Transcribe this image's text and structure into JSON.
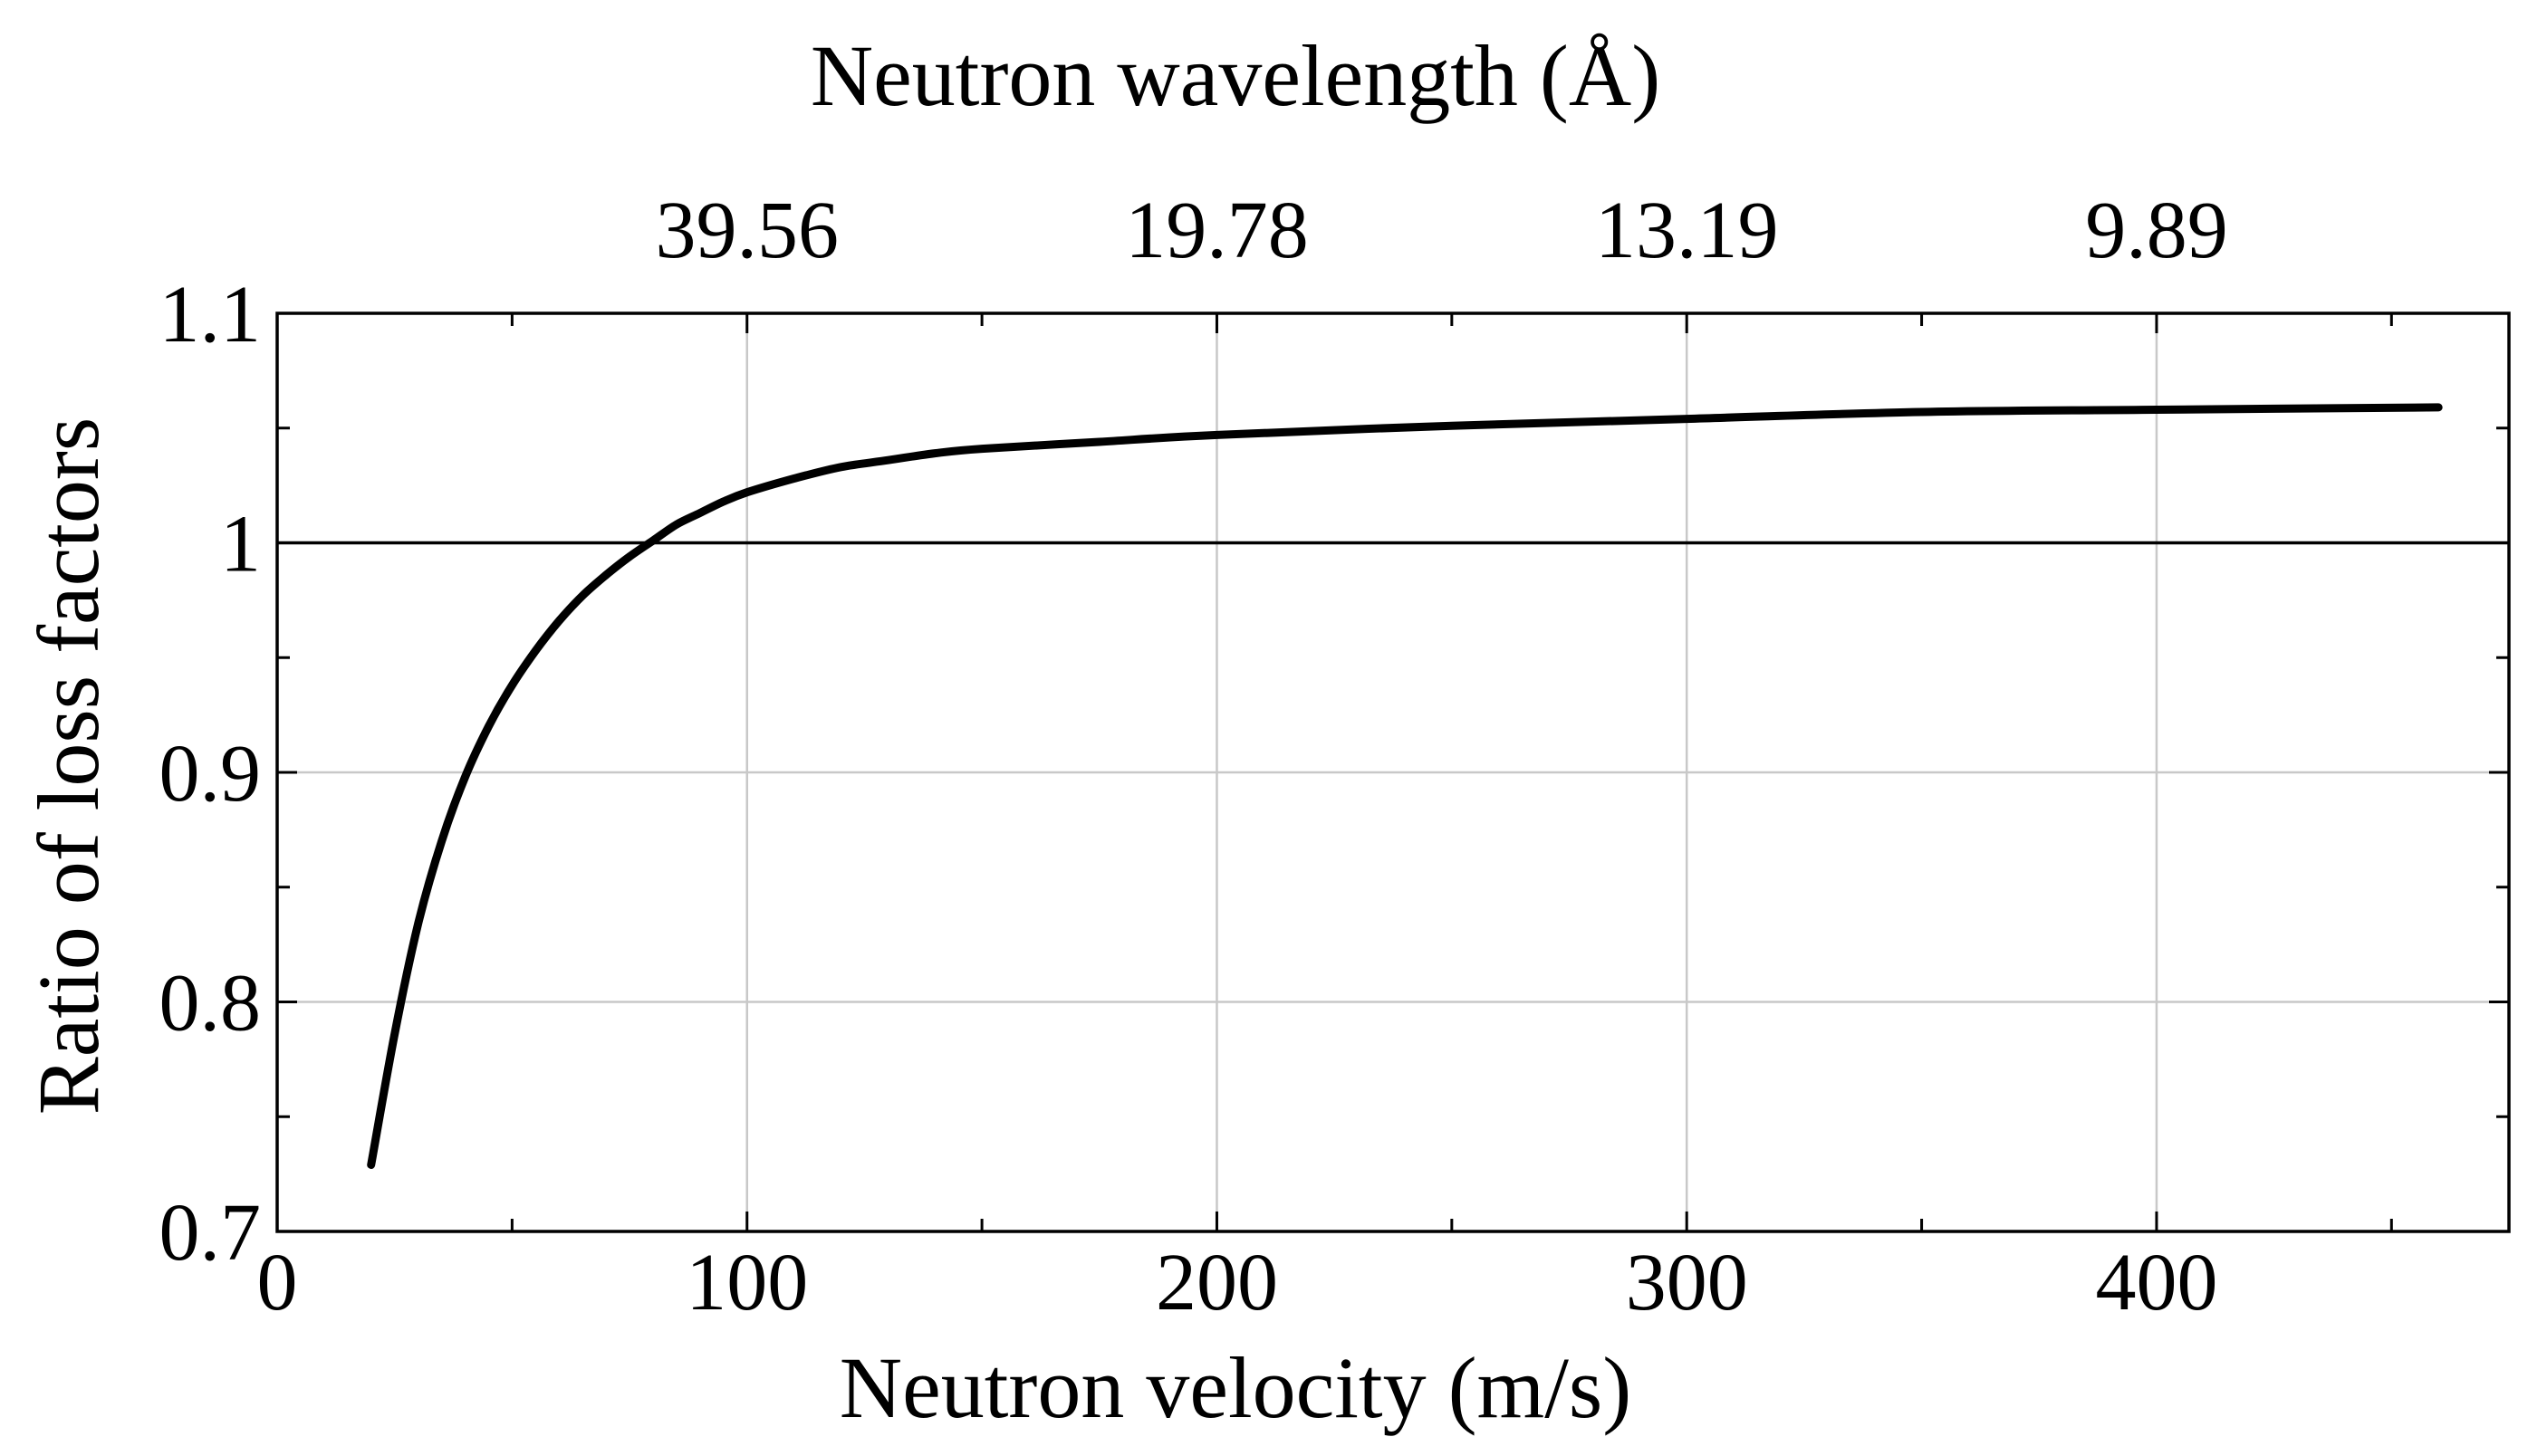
{
  "chart_data": {
    "type": "line",
    "xlabel": "Neutron velocity (m/s)",
    "ylabel": "Ratio of loss factors",
    "x2label": "Neutron wavelength (Å)",
    "xlim": [
      0,
      475
    ],
    "ylim": [
      0.7,
      1.1
    ],
    "x_ticks": [
      0,
      100,
      200,
      300,
      400
    ],
    "x_tick_labels": [
      "0",
      "100",
      "200",
      "300",
      "400"
    ],
    "x_minor_ticks": [
      50,
      150,
      250,
      350,
      450
    ],
    "y_ticks": [
      0.7,
      0.8,
      0.9,
      1.0,
      1.1
    ],
    "y_tick_labels": [
      "0.7",
      "0.8",
      "0.9",
      "1",
      "1.1"
    ],
    "y_minor_ticks": [
      0.75,
      0.85,
      0.95,
      1.05
    ],
    "top_axis": {
      "tick_positions_velocity": [
        100,
        200,
        300,
        400
      ],
      "tick_labels": [
        "39.56",
        "19.78",
        "13.19",
        "9.89"
      ]
    },
    "reference_line": {
      "y": 1.0
    },
    "grid": true,
    "series": [
      {
        "name": "Ratio of loss factors",
        "color": "#000000",
        "x": [
          20,
          25,
          30,
          35,
          40,
          45,
          50,
          55,
          60,
          65,
          70,
          75,
          80,
          85,
          90,
          95,
          100,
          110,
          120,
          130,
          140,
          150,
          175,
          200,
          250,
          300,
          350,
          400,
          460
        ],
        "y": [
          0.729,
          0.786,
          0.834,
          0.87,
          0.898,
          0.92,
          0.938,
          0.953,
          0.966,
          0.977,
          0.986,
          0.994,
          1.001,
          1.008,
          1.013,
          1.018,
          1.022,
          1.028,
          1.033,
          1.036,
          1.039,
          1.041,
          1.044,
          1.047,
          1.051,
          1.054,
          1.057,
          1.058,
          1.059
        ]
      }
    ]
  }
}
